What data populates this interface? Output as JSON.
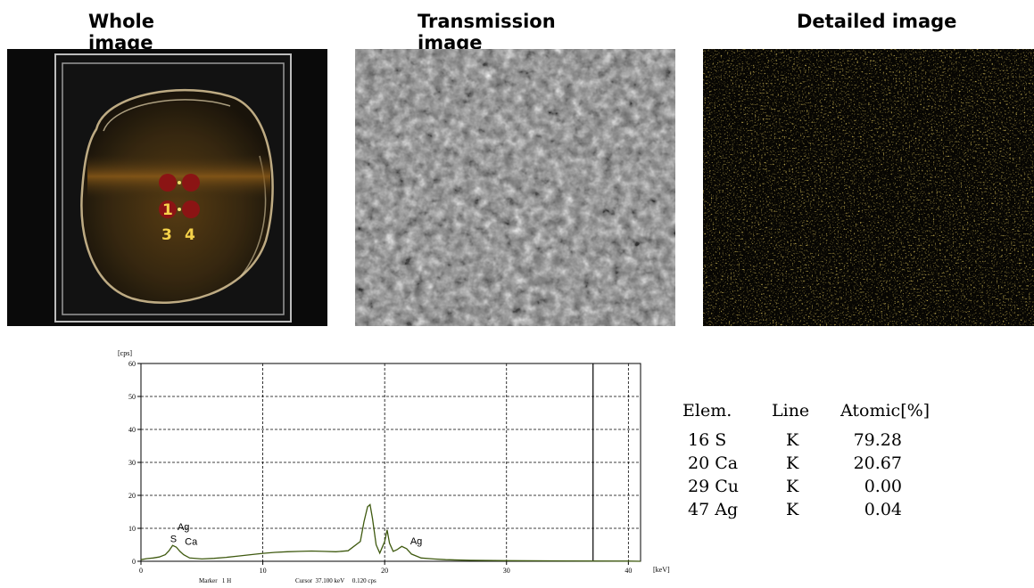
{
  "titles": {
    "whole": "Whole image",
    "transmission": "Transmission image",
    "detailed": "Detailed image"
  },
  "sample_markers": [
    "1",
    "3",
    "4"
  ],
  "chart_data": {
    "type": "line",
    "y_unit": "[cps]",
    "x_unit": "[keV]",
    "xlim": [
      0,
      41
    ],
    "ylim": [
      0,
      60
    ],
    "x_ticks": [
      0,
      10,
      20,
      30,
      40
    ],
    "y_ticks": [
      0,
      10,
      20,
      30,
      40,
      50,
      60
    ],
    "grid": true,
    "cursor_line_x": 37.1,
    "series": [
      {
        "x": [
          0,
          0.5,
          1,
          1.5,
          2,
          2.3,
          2.6,
          2.9,
          3.2,
          3.5,
          3.7,
          4,
          5,
          6,
          7,
          8,
          9,
          10,
          11,
          12,
          13,
          14,
          15,
          16,
          17,
          18,
          18.3,
          18.6,
          18.8,
          19,
          19.3,
          19.6,
          20,
          20.2,
          20.4,
          20.7,
          21,
          21.4,
          21.8,
          22.2,
          23,
          24,
          25,
          27,
          30,
          35,
          40,
          41
        ],
        "y": [
          0.5,
          0.8,
          1,
          1.3,
          2,
          3.2,
          4.8,
          4.3,
          3,
          2,
          1.6,
          1,
          0.7,
          0.9,
          1.2,
          1.6,
          2,
          2.4,
          2.7,
          2.9,
          3,
          3.1,
          3,
          2.9,
          3.2,
          6,
          12,
          16.5,
          17.2,
          13,
          5,
          2.5,
          6,
          9.5,
          5.5,
          3,
          3.5,
          4.5,
          3.8,
          2.2,
          1,
          0.7,
          0.5,
          0.3,
          0.2,
          0.1,
          0.05,
          0
        ]
      }
    ],
    "annotations": [
      {
        "text": "Ag",
        "x": 3.0,
        "y": 9.5
      },
      {
        "text": "S",
        "x": 2.4,
        "y": 5.8
      },
      {
        "text": "Ca",
        "x": 3.6,
        "y": 5.0
      },
      {
        "text": "Ag",
        "x": 22.1,
        "y": 5.2
      }
    ],
    "footer": {
      "marker": "Marker   1 H",
      "cursor": "Cursor  37.100 keV     0.120 cps"
    }
  },
  "table": {
    "headers": [
      "Elem.",
      "Line",
      "Atomic[%]"
    ],
    "rows": [
      {
        "elem": "16 S",
        "line": "K",
        "atomic": "79.28"
      },
      {
        "elem": "20 Ca",
        "line": "K",
        "atomic": "20.67"
      },
      {
        "elem": "29 Cu",
        "line": "K",
        "atomic": "0.00"
      },
      {
        "elem": "47 Ag",
        "line": "K",
        "atomic": "0.04"
      }
    ]
  }
}
